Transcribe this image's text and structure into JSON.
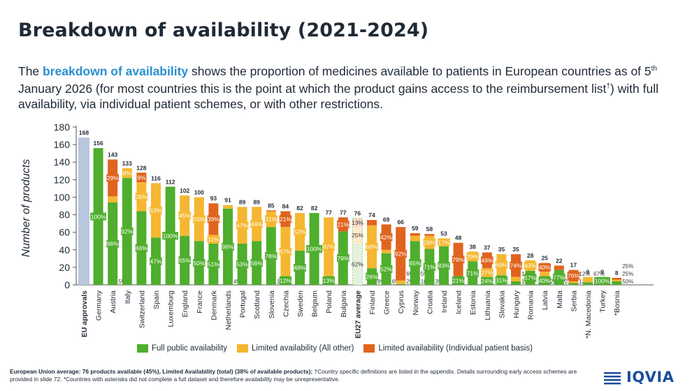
{
  "title": "Breakdown of availability (2021-2024)",
  "intro": {
    "pre": "The ",
    "highlight": "breakdown of availability",
    "post1": " shows the proportion of medicines available to patients in European countries as of 5",
    "sup1": "th",
    "post2": " January 2026 (for most countries this is the point at which the product gains access to the reimbursement list",
    "sup2": "†",
    "post3": ") with full availability, via individual patient schemes, or with other restrictions."
  },
  "colors": {
    "full": "#4fae2d",
    "limited_other": "#f5b731",
    "limited_ips": "#e0641e",
    "eu_approvals": "#b7c7dd",
    "average_fill": "#eef6e9",
    "average_border": "#4fae2d"
  },
  "chart_data": {
    "type": "bar",
    "stacked": true,
    "ylabel": "Number of products",
    "ylim": [
      0,
      180
    ],
    "yticks": [
      "0",
      "20",
      "40",
      "60",
      "80",
      "100",
      "120",
      "140",
      "160",
      "180"
    ],
    "legend": [
      "Full public availability",
      "Limited availability (All other)",
      "Limited availability (Individual patient basis)"
    ],
    "legend_position": "bottom",
    "bars": [
      {
        "name": "EU approvals",
        "total": 168,
        "full": 168,
        "other": 0,
        "ips": 0,
        "labels": {
          "full": "",
          "other": "",
          "ips": ""
        },
        "kind": "approvals"
      },
      {
        "name": "Germany",
        "total": 156,
        "full": 156,
        "other": 0,
        "ips": 0,
        "labels": {
          "full": "100%",
          "other": "",
          "ips": ""
        }
      },
      {
        "name": "Austria",
        "total": 143,
        "full": 94,
        "other": 7,
        "ips": 42,
        "labels": {
          "full": "66%",
          "other": "5%",
          "ips": "29%"
        }
      },
      {
        "name": "Italy",
        "total": 133,
        "full": 122,
        "other": 11,
        "ips": 0,
        "labels": {
          "full": "92%",
          "other": "8%",
          "ips": ""
        }
      },
      {
        "name": "Switzerland",
        "total": 128,
        "full": 84,
        "other": 33,
        "ips": 11,
        "labels": {
          "full": "66%",
          "other": "26%",
          "ips": "9%"
        }
      },
      {
        "name": "Spain",
        "total": 116,
        "full": 54,
        "other": 62,
        "ips": 0,
        "labels": {
          "full": "47%",
          "other": "53%",
          "ips": ""
        }
      },
      {
        "name": "Luxemburg",
        "total": 112,
        "full": 112,
        "other": 0,
        "ips": 0,
        "labels": {
          "full": "100%",
          "other": "",
          "ips": ""
        }
      },
      {
        "name": "England",
        "total": 102,
        "full": 56,
        "other": 46,
        "ips": 0,
        "labels": {
          "full": "55%",
          "other": "45%",
          "ips": ""
        }
      },
      {
        "name": "France",
        "total": 100,
        "full": 50,
        "other": 50,
        "ips": 0,
        "labels": {
          "full": "50%",
          "other": "50%",
          "ips": ""
        }
      },
      {
        "name": "Denmark",
        "total": 93,
        "full": 47,
        "other": 10,
        "ips": 36,
        "labels": {
          "full": "51%",
          "other": "11%",
          "ips": "39%"
        }
      },
      {
        "name": "Netherlands",
        "total": 91,
        "full": 87,
        "other": 4,
        "ips": 0,
        "labels": {
          "full": "96%",
          "other": "4%",
          "ips": ""
        }
      },
      {
        "name": "Portugal",
        "total": 89,
        "full": 47,
        "other": 42,
        "ips": 0,
        "labels": {
          "full": "53%",
          "other": "47%",
          "ips": ""
        }
      },
      {
        "name": "Scotland",
        "total": 89,
        "full": 50,
        "other": 39,
        "ips": 0,
        "labels": {
          "full": "56%",
          "other": "44%",
          "ips": ""
        }
      },
      {
        "name": "Slovenia",
        "total": 85,
        "full": 66,
        "other": 18,
        "ips": 1,
        "labels": {
          "full": "78%",
          "other": "21%",
          "ips": "1%"
        }
      },
      {
        "name": "Czechia",
        "total": 84,
        "full": 10,
        "other": 56,
        "ips": 18,
        "labels": {
          "full": "12%",
          "other": "67%",
          "ips": "21%"
        }
      },
      {
        "name": "Sweden",
        "total": 82,
        "full": 39,
        "other": 43,
        "ips": 0,
        "labels": {
          "full": "48%",
          "other": "52%",
          "ips": ""
        }
      },
      {
        "name": "Belgium",
        "total": 82,
        "full": 82,
        "other": 0,
        "ips": 0,
        "labels": {
          "full": "100%",
          "other": "",
          "ips": ""
        }
      },
      {
        "name": "Poland",
        "total": 77,
        "full": 10,
        "other": 67,
        "ips": 0,
        "labels": {
          "full": "13%",
          "other": "87%",
          "ips": ""
        }
      },
      {
        "name": "Bulgaria",
        "total": 77,
        "full": 61,
        "other": 0,
        "ips": 16,
        "labels": {
          "full": "79%",
          "other": "",
          "ips": "21%"
        }
      },
      {
        "name": "EU27 average",
        "total": 76,
        "full": 47,
        "other": 19,
        "ips": 10,
        "labels": {
          "full": "62%",
          "other": "25%",
          "ips": "13%"
        },
        "kind": "average"
      },
      {
        "name": "Finland",
        "total": 74,
        "full": 19,
        "other": 49,
        "ips": 6,
        "labels": {
          "full": "26%",
          "other": "66%",
          "ips": "8%"
        }
      },
      {
        "name": "Greece",
        "total": 69,
        "full": 36,
        "other": 4,
        "ips": 29,
        "labels": {
          "full": "52%",
          "other": "6%",
          "ips": "42%"
        }
      },
      {
        "name": "Cyprus",
        "total": 66,
        "full": 1,
        "other": 4,
        "ips": 61,
        "labels": {
          "full": "2%",
          "other": "6%",
          "ips": "92%"
        }
      },
      {
        "name": "Norway",
        "total": 59,
        "full": 50,
        "other": 6,
        "ips": 3,
        "labels": {
          "full": "85%",
          "other": "10%",
          "ips": "5%"
        }
      },
      {
        "name": "Croatia",
        "total": 58,
        "full": 41,
        "other": 15,
        "ips": 2,
        "labels": {
          "full": "71%",
          "other": "26%",
          "ips": "3%"
        }
      },
      {
        "name": "Ireland",
        "total": 53,
        "full": 44,
        "other": 9,
        "ips": 0,
        "labels": {
          "full": "83%",
          "other": "17%",
          "ips": ""
        }
      },
      {
        "name": "Iceland",
        "total": 48,
        "full": 10,
        "other": 0,
        "ips": 38,
        "labels": {
          "full": "21%",
          "other": "",
          "ips": "79%"
        }
      },
      {
        "name": "Estonia",
        "total": 38,
        "full": 27,
        "other": 11,
        "ips": 0,
        "labels": {
          "full": "71%",
          "other": "29%",
          "ips": ""
        }
      },
      {
        "name": "Lithuania",
        "total": 37,
        "full": 9,
        "other": 10,
        "ips": 18,
        "labels": {
          "full": "24%",
          "other": "27%",
          "ips": "49%"
        }
      },
      {
        "name": "Slovakia",
        "total": 35,
        "full": 11,
        "other": 24,
        "ips": 0,
        "labels": {
          "full": "31%",
          "other": "69%",
          "ips": ""
        }
      },
      {
        "name": "Hungary",
        "total": 35,
        "full": 4,
        "other": 5,
        "ips": 26,
        "labels": {
          "full": "11%",
          "other": "14%",
          "ips": "74%"
        }
      },
      {
        "name": "Romania",
        "total": 28,
        "full": 16,
        "other": 12,
        "ips": 0,
        "labels": {
          "full": "57%",
          "other": "43%",
          "ips": ""
        }
      },
      {
        "name": "Latvia",
        "total": 25,
        "full": 10,
        "other": 5,
        "ips": 10,
        "labels": {
          "full": "40%",
          "other": "20%",
          "ips": "40%"
        }
      },
      {
        "name": "Malta",
        "total": 22,
        "full": 17,
        "other": 0,
        "ips": 5,
        "labels": {
          "full": "77%",
          "other": "",
          "ips": "23%"
        }
      },
      {
        "name": "Serbia",
        "total": 17,
        "full": 2,
        "other": 2,
        "ips": 13,
        "labels": {
          "full": "12%",
          "other": "12%",
          "ips": "76%"
        }
      },
      {
        "name": "*N. Macedonia",
        "total": 9,
        "full": 3,
        "other": 6,
        "ips": 0,
        "labels": {
          "full": "33%",
          "other": "67%",
          "ips": ""
        }
      },
      {
        "name": "Turkey",
        "total": 9,
        "full": 9,
        "other": 0,
        "ips": 0,
        "labels": {
          "full": "100%",
          "other": "",
          "ips": ""
        }
      },
      {
        "name": "*Bosnia",
        "total": 8,
        "full": 4,
        "other": 2,
        "ips": 2,
        "labels": {
          "full": "50%",
          "other": "25%",
          "ips": "25%"
        }
      }
    ]
  },
  "footnote": {
    "bold": "European Union average: 76 products available (45%), Limited Availability (total) (38% of available products);",
    "rest": " †Country specific definitions are listed in the appendix. Details surrounding early access schemes are provided in slide 72. *Countries with asterisks did not complete a full dataset and therefore availability may be unrepresentative."
  },
  "logo": {
    "text": "IQVIA",
    "icon": "iqvia-logo-icon"
  }
}
